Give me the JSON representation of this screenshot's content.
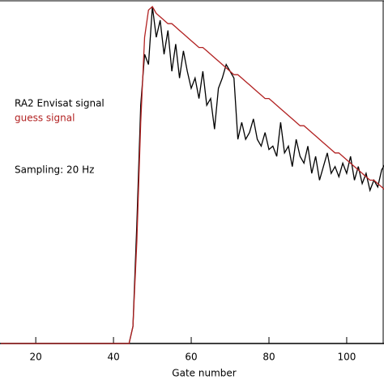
{
  "chart_data": {
    "type": "line",
    "xlabel": "Gate number",
    "annotations": [
      "RA2 Envisat signal",
      "guess signal",
      "Sampling: 20 Hz"
    ],
    "x": [
      11,
      12,
      13,
      14,
      15,
      16,
      17,
      18,
      19,
      20,
      21,
      22,
      23,
      24,
      25,
      26,
      27,
      28,
      29,
      30,
      31,
      32,
      33,
      34,
      35,
      36,
      37,
      38,
      39,
      40,
      41,
      42,
      43,
      44,
      45,
      46,
      47,
      48,
      49,
      50,
      51,
      52,
      53,
      54,
      55,
      56,
      57,
      58,
      59,
      60,
      61,
      62,
      63,
      64,
      65,
      66,
      67,
      68,
      69,
      70,
      71,
      72,
      73,
      74,
      75,
      76,
      77,
      78,
      79,
      80,
      81,
      82,
      83,
      84,
      85,
      86,
      87,
      88,
      89,
      90,
      91,
      92,
      93,
      94,
      95,
      96,
      97,
      98,
      99,
      100,
      101,
      102,
      103,
      104,
      105,
      106,
      107,
      108,
      109,
      110
    ],
    "series": [
      {
        "name": "RA2 Envisat signal",
        "color": "#000000",
        "values": [
          0,
          0,
          0,
          0,
          0,
          0,
          0,
          0,
          0,
          0,
          0,
          0,
          0,
          0,
          0,
          0,
          0,
          0,
          0,
          0,
          0,
          0,
          0,
          0,
          0,
          0,
          0,
          0,
          0,
          0,
          0,
          0,
          0,
          0,
          0.05,
          0.35,
          0.7,
          0.85,
          0.82,
          0.99,
          0.9,
          0.95,
          0.85,
          0.92,
          0.8,
          0.88,
          0.78,
          0.86,
          0.8,
          0.75,
          0.78,
          0.72,
          0.8,
          0.7,
          0.72,
          0.63,
          0.75,
          0.78,
          0.82,
          0.8,
          0.78,
          0.6,
          0.65,
          0.6,
          0.62,
          0.66,
          0.6,
          0.58,
          0.62,
          0.57,
          0.58,
          0.55,
          0.65,
          0.56,
          0.58,
          0.52,
          0.6,
          0.55,
          0.53,
          0.58,
          0.5,
          0.55,
          0.48,
          0.52,
          0.56,
          0.5,
          0.52,
          0.49,
          0.53,
          0.5,
          0.55,
          0.48,
          0.52,
          0.47,
          0.5,
          0.45,
          0.48,
          0.46,
          0.51,
          0.53
        ]
      },
      {
        "name": "guess signal",
        "color": "#b22222",
        "values": [
          0,
          0,
          0,
          0,
          0,
          0,
          0,
          0,
          0,
          0,
          0,
          0,
          0,
          0,
          0,
          0,
          0,
          0,
          0,
          0,
          0,
          0,
          0,
          0,
          0,
          0,
          0,
          0,
          0,
          0,
          0,
          0,
          0,
          0,
          0.05,
          0.3,
          0.65,
          0.9,
          0.98,
          0.99,
          0.97,
          0.96,
          0.95,
          0.94,
          0.94,
          0.93,
          0.92,
          0.91,
          0.9,
          0.89,
          0.88,
          0.87,
          0.87,
          0.86,
          0.85,
          0.84,
          0.83,
          0.82,
          0.81,
          0.8,
          0.79,
          0.79,
          0.78,
          0.77,
          0.76,
          0.75,
          0.74,
          0.73,
          0.72,
          0.72,
          0.71,
          0.7,
          0.69,
          0.68,
          0.67,
          0.66,
          0.65,
          0.64,
          0.64,
          0.63,
          0.62,
          0.61,
          0.6,
          0.59,
          0.58,
          0.57,
          0.56,
          0.56,
          0.55,
          0.54,
          0.53,
          0.52,
          0.51,
          0.5,
          0.49,
          0.48,
          0.48,
          0.47,
          0.46,
          0.45
        ]
      }
    ],
    "xlim": [
      10.8,
      109.6
    ],
    "ylim": [
      0,
      1
    ],
    "xticks": [
      20,
      40,
      60,
      80,
      100
    ]
  }
}
